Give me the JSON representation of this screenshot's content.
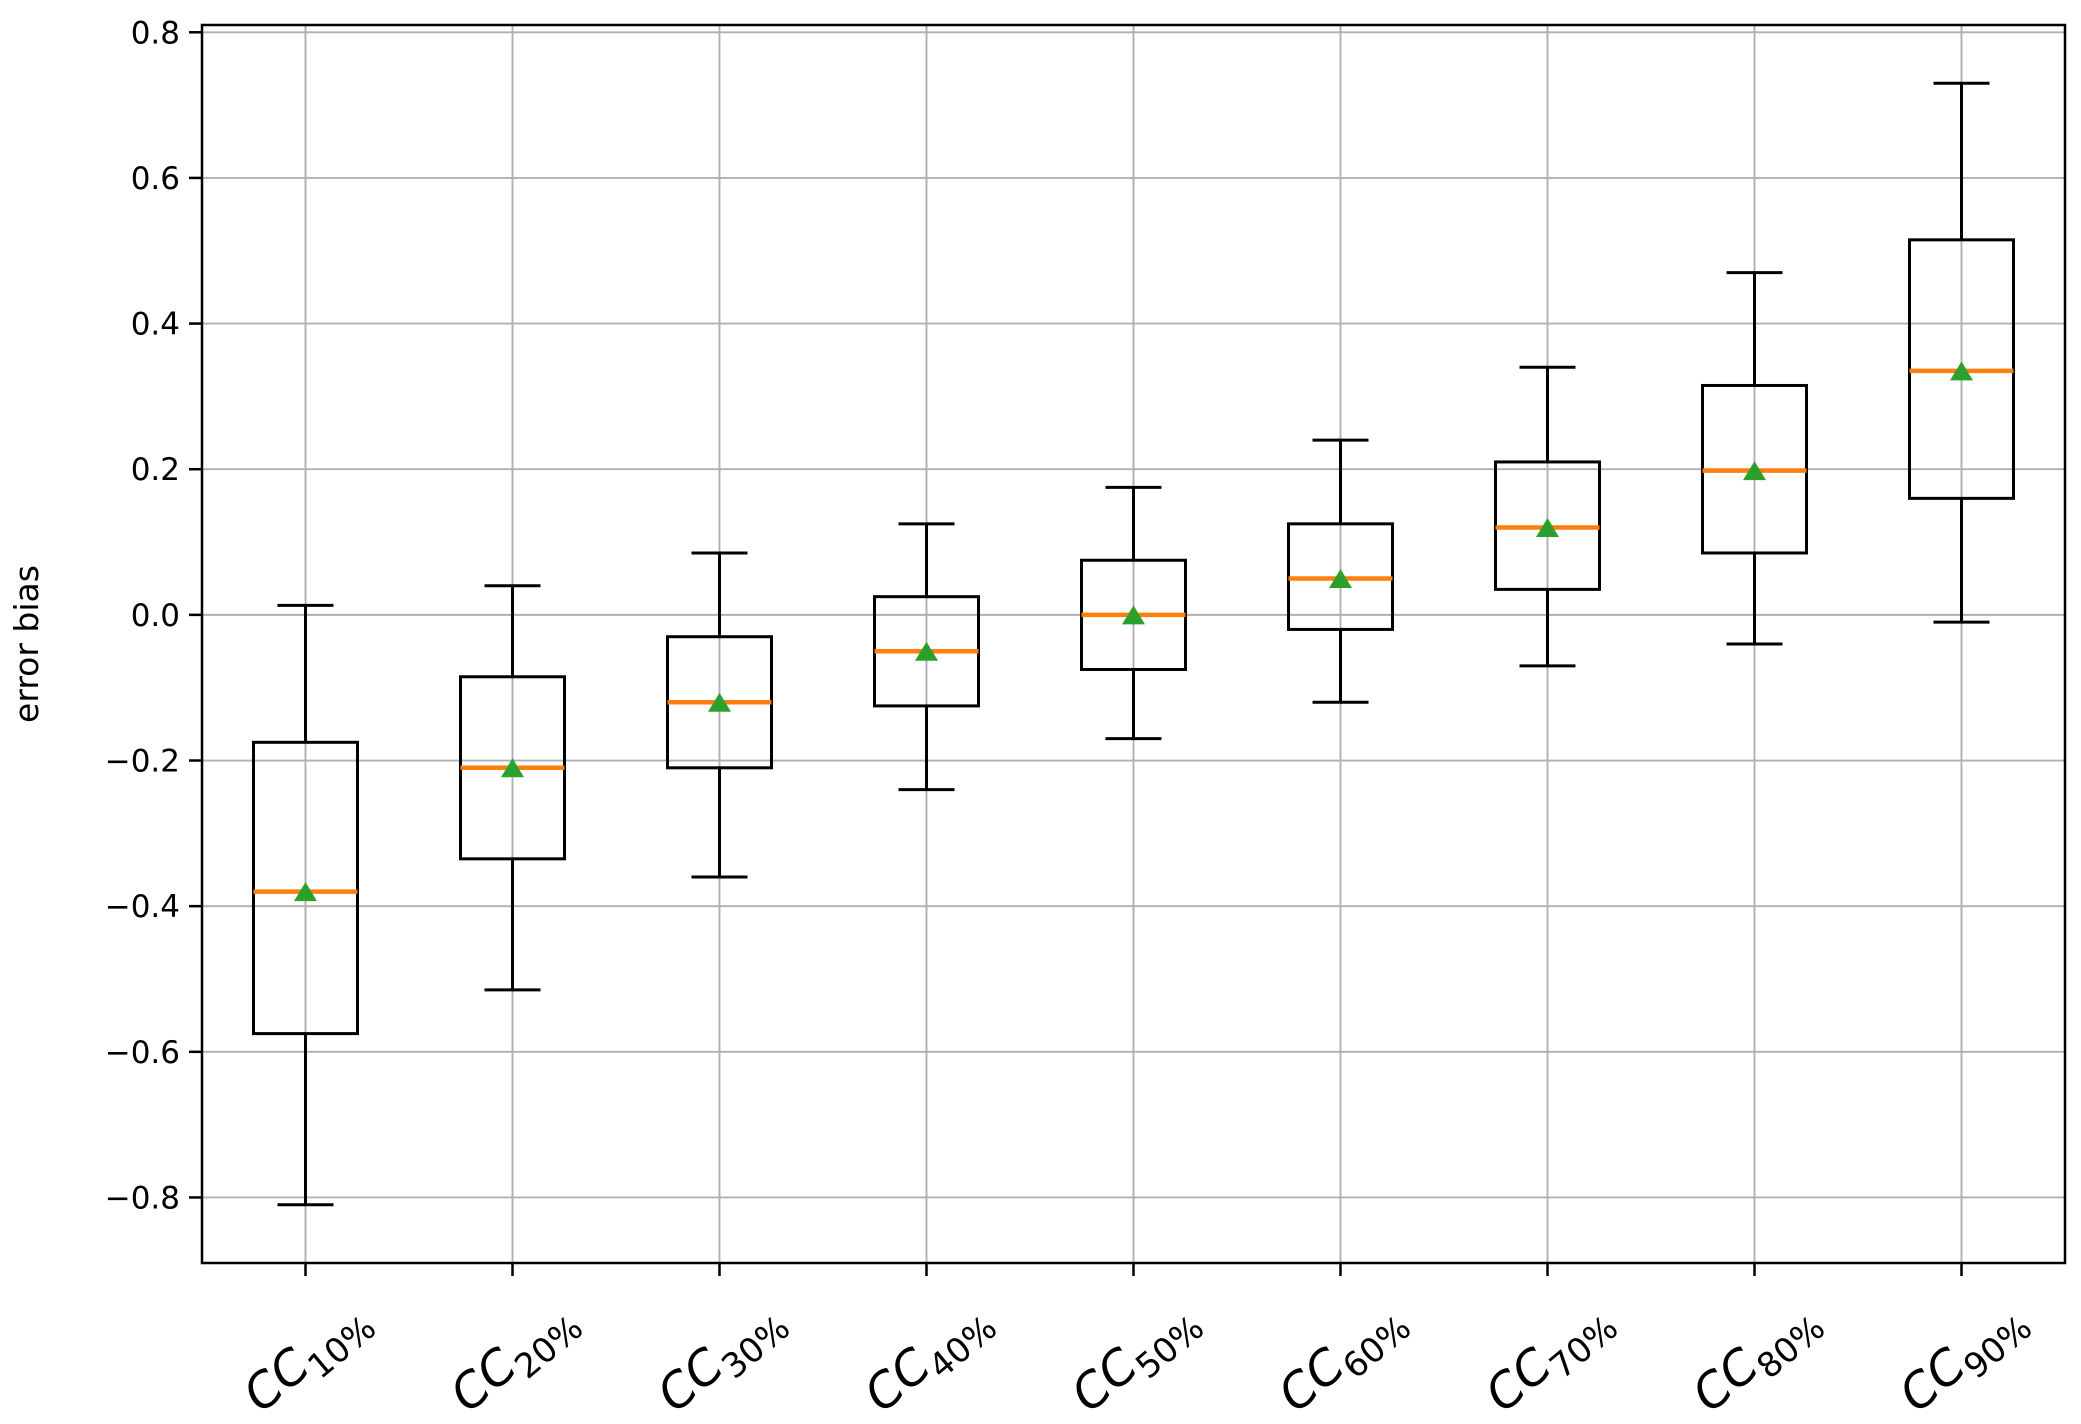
{
  "chart_data": {
    "type": "boxplot",
    "title": "",
    "xlabel": "",
    "ylabel": "error bias",
    "ylim": [
      -0.89,
      0.81
    ],
    "grid": true,
    "legend_position": "none",
    "yticks": [
      {
        "value": 0.8,
        "label": "0.8"
      },
      {
        "value": 0.6,
        "label": "0.6"
      },
      {
        "value": 0.4,
        "label": "0.4"
      },
      {
        "value": 0.2,
        "label": "0.2"
      },
      {
        "value": 0.0,
        "label": "0.0"
      },
      {
        "value": -0.2,
        "label": "−0.2"
      },
      {
        "value": -0.4,
        "label": "−0.4"
      },
      {
        "value": -0.6,
        "label": "−0.6"
      },
      {
        "value": -0.8,
        "label": "−0.8"
      }
    ],
    "categories": [
      {
        "main": "CC",
        "sub": "10%"
      },
      {
        "main": "CC",
        "sub": "20%"
      },
      {
        "main": "CC",
        "sub": "30%"
      },
      {
        "main": "CC",
        "sub": "40%"
      },
      {
        "main": "CC",
        "sub": "50%"
      },
      {
        "main": "CC",
        "sub": "60%"
      },
      {
        "main": "CC",
        "sub": "70%"
      },
      {
        "main": "CC",
        "sub": "80%"
      },
      {
        "main": "CC",
        "sub": "90%"
      }
    ],
    "series": [
      {
        "label": "CC10%",
        "whislo": -0.81,
        "q1": -0.575,
        "med": -0.38,
        "q3": -0.175,
        "whishi": 0.013,
        "mean": -0.38
      },
      {
        "label": "CC20%",
        "whislo": -0.515,
        "q1": -0.335,
        "med": -0.21,
        "q3": -0.085,
        "whishi": 0.04,
        "mean": -0.21
      },
      {
        "label": "CC30%",
        "whislo": -0.36,
        "q1": -0.21,
        "med": -0.12,
        "q3": -0.03,
        "whishi": 0.085,
        "mean": -0.12
      },
      {
        "label": "CC40%",
        "whislo": -0.24,
        "q1": -0.125,
        "med": -0.05,
        "q3": 0.025,
        "whishi": 0.125,
        "mean": -0.05
      },
      {
        "label": "CC50%",
        "whislo": -0.17,
        "q1": -0.075,
        "med": 0.0,
        "q3": 0.075,
        "whishi": 0.175,
        "mean": 0.0
      },
      {
        "label": "CC60%",
        "whislo": -0.12,
        "q1": -0.02,
        "med": 0.05,
        "q3": 0.125,
        "whishi": 0.24,
        "mean": 0.05
      },
      {
        "label": "CC70%",
        "whislo": -0.07,
        "q1": 0.035,
        "med": 0.12,
        "q3": 0.21,
        "whishi": 0.34,
        "mean": 0.12
      },
      {
        "label": "CC80%",
        "whislo": -0.04,
        "q1": 0.085,
        "med": 0.198,
        "q3": 0.315,
        "whishi": 0.47,
        "mean": 0.198
      },
      {
        "label": "CC90%",
        "whislo": -0.01,
        "q1": 0.16,
        "med": 0.335,
        "q3": 0.515,
        "whishi": 0.73,
        "mean": 0.335
      }
    ],
    "colors": {
      "box": "#000000",
      "whisker": "#000000",
      "median": "#ff7f0e",
      "mean_marker": "#2ca02c",
      "grid": "#b0b0b0",
      "spine": "#000000",
      "background": "#ffffff"
    }
  }
}
